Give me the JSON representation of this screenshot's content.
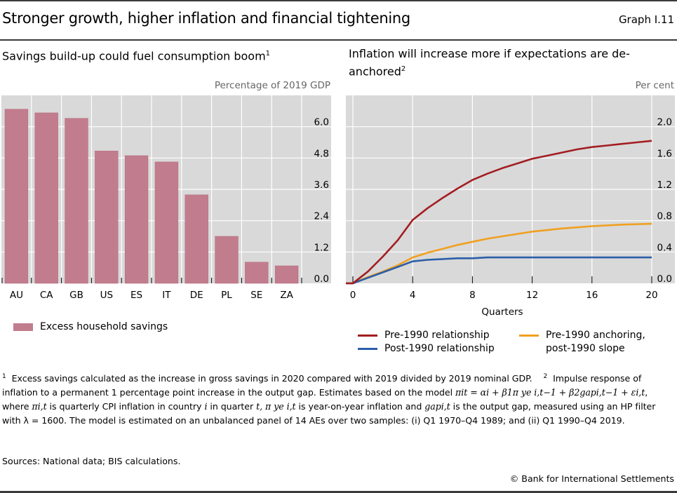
{
  "header": {
    "title": "Stronger growth, higher inflation and financial tightening",
    "graph_id": "Graph I.11"
  },
  "chart_data": [
    {
      "type": "bar",
      "title": "Savings build-up could fuel consumption boom",
      "title_footnote": "1",
      "unit_label": "Percentage of 2019 GDP",
      "categories": [
        "AU",
        "CA",
        "GB",
        "US",
        "ES",
        "IT",
        "DE",
        "PL",
        "SE",
        "ZA"
      ],
      "series": [
        {
          "name": "Excess household savings",
          "color": "#c17d8e",
          "values": [
            6.67,
            6.53,
            6.32,
            5.07,
            4.89,
            4.65,
            3.39,
            1.8,
            0.81,
            0.67
          ]
        }
      ],
      "xlabel": "",
      "ylabel": "Percentage of 2019 GDP",
      "ylim": [
        0,
        7.2
      ],
      "yticks": [
        0.0,
        1.2,
        2.4,
        3.6,
        4.8,
        6.0
      ],
      "ytick_labels": [
        "0.0",
        "1.2",
        "2.4",
        "3.6",
        "4.8",
        "6.0"
      ],
      "y_axis_side": "right",
      "grid": true,
      "legend": {
        "placement": "bottom-left",
        "entries": [
          "Excess household savings"
        ]
      }
    },
    {
      "type": "line",
      "title": "Inflation will increase more if expectations are de-anchored",
      "title_footnote": "2",
      "unit_label": "Per cent",
      "x": [
        0,
        1,
        2,
        3,
        4,
        5,
        6,
        7,
        8,
        9,
        10,
        11,
        12,
        13,
        14,
        15,
        16,
        17,
        18,
        19,
        20
      ],
      "series": [
        {
          "name": "Pre-1990 relationship",
          "color": "#a31d21",
          "values": [
            0.0,
            0.15,
            0.34,
            0.55,
            0.81,
            0.96,
            1.09,
            1.21,
            1.32,
            1.4,
            1.47,
            1.53,
            1.59,
            1.63,
            1.67,
            1.71,
            1.74,
            1.76,
            1.78,
            1.8,
            1.82
          ]
        },
        {
          "name": "Post-1990 relationship",
          "color": "#2a5ea8",
          "values": [
            0.0,
            0.07,
            0.14,
            0.21,
            0.28,
            0.3,
            0.31,
            0.32,
            0.32,
            0.33,
            0.33,
            0.33,
            0.33,
            0.33,
            0.33,
            0.33,
            0.33,
            0.33,
            0.33,
            0.33,
            0.33
          ]
        },
        {
          "name": "Pre-1990 anchoring, post-1990 slope",
          "color": "#f0a01f",
          "values": [
            0.0,
            0.08,
            0.15,
            0.23,
            0.33,
            0.39,
            0.44,
            0.49,
            0.53,
            0.57,
            0.6,
            0.63,
            0.66,
            0.68,
            0.7,
            0.715,
            0.73,
            0.74,
            0.75,
            0.755,
            0.76
          ]
        }
      ],
      "xlabel": "Quarters",
      "ylabel": "Per cent",
      "xlim": [
        -0.5,
        20
      ],
      "xticks": [
        0,
        4,
        8,
        12,
        16,
        20
      ],
      "xtick_labels": [
        "0",
        "4",
        "8",
        "12",
        "16",
        "20"
      ],
      "ylim": [
        0,
        2.4
      ],
      "yticks": [
        0.0,
        0.4,
        0.8,
        1.2,
        1.6,
        2.0
      ],
      "ytick_labels": [
        "0.0",
        "0.4",
        "0.8",
        "1.2",
        "1.6",
        "2.0"
      ],
      "y_axis_side": "right",
      "grid": true,
      "legend": {
        "placement": "bottom",
        "entries": [
          "Pre-1990 relationship",
          "Post-1990 relationship",
          "Pre-1990 anchoring, post-1990 slope"
        ]
      }
    }
  ],
  "legend_left": {
    "label": "Excess household savings"
  },
  "legend_right": {
    "pre": "Pre-1990 relationship",
    "post": "Post-1990 relationship",
    "anchor_line1": "Pre-1990 anchoring,",
    "anchor_line2": "post-1990 slope"
  },
  "footnotes": {
    "n1_mark": "1",
    "n1_text": "Excess savings calculated as the increase in gross savings in 2020 compared with 2019 divided by 2019 nominal GDP.",
    "n2_mark": "2",
    "n2_text_a": "Impulse response of inflation to a permanent 1 percentage point increase in the output gap. Estimates based on the model",
    "n2_model": "πit = αi + β1π ye i,t−1 + β2gapi,t−1 + εi,t",
    "n2_text_b": ", where",
    "n2_pi": "πi,t",
    "n2_text_c": "is quarterly CPI inflation in country",
    "n2_i": "i",
    "n2_text_d": "in quarter",
    "n2_t": "t,",
    "n2_piye": "π ye i,t",
    "n2_text_e": "is year-on-year inflation and",
    "n2_gap": "gapi,t",
    "n2_text_f": "is the output gap, measured using an HP filter with λ = 1600. The model is estimated on an unbalanced panel of 14 AEs over two samples: (i) Q1 1970–Q4 1989; and (ii) Q1 1990–Q4 2019."
  },
  "sources": "Sources: National data; BIS calculations.",
  "copyright": "© Bank for International Settlements"
}
